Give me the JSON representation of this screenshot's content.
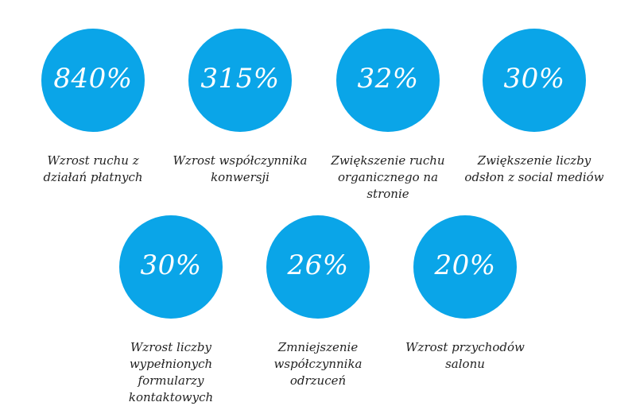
{
  "colors": {
    "circle": "#0aa5e8",
    "value_text": "#ffffff",
    "label_text": "#222222",
    "background": "#ffffff"
  },
  "stats": [
    {
      "value": "840%",
      "label_lines": [
        "Wzrost ruchu z",
        "działań płatnych"
      ]
    },
    {
      "value": "315%",
      "label_lines": [
        "Wzrost współczynnika",
        "konwersji"
      ]
    },
    {
      "value": "32%",
      "label_lines": [
        "Zwiększenie ruchu",
        "organicznego na stronie"
      ]
    },
    {
      "value": "30%",
      "label_lines": [
        "Zwiększenie liczby",
        "odsłon z social mediów"
      ]
    },
    {
      "value": "30%",
      "label_lines": [
        "Wzrost liczby",
        "wypełnionych formularzy",
        "kontaktowych"
      ]
    },
    {
      "value": "26%",
      "label_lines": [
        "Zmniejszenie",
        "współczynnika",
        "odrzuceń"
      ]
    },
    {
      "value": "20%",
      "label_lines": [
        "Wzrost przychodów",
        "salonu"
      ]
    }
  ]
}
